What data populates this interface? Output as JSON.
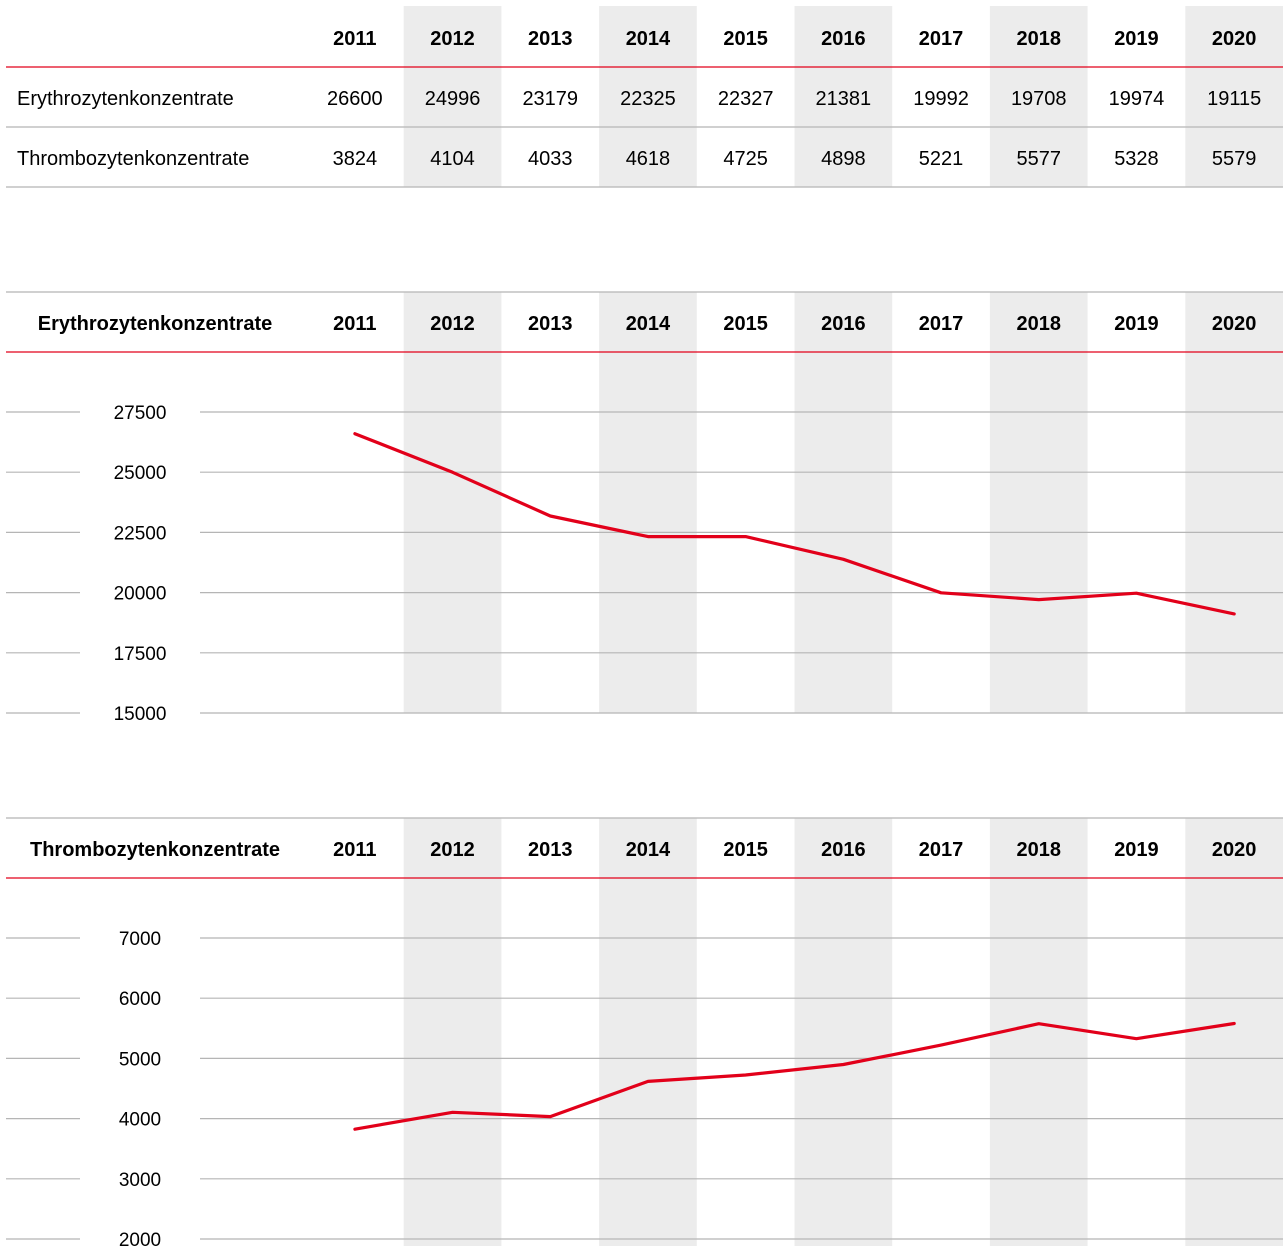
{
  "colors": {
    "accent": "#e2001a",
    "band": "#ececec",
    "rule": "#b5b5b5"
  },
  "chart_data": [
    {
      "type": "table",
      "years": [
        "2011",
        "2012",
        "2013",
        "2014",
        "2015",
        "2016",
        "2017",
        "2018",
        "2019",
        "2020"
      ],
      "rows": [
        {
          "label": "Erythrozytenkonzentrate",
          "cells": [
            "26600",
            "24996",
            "23179",
            "22325",
            "22327",
            "21381",
            "19992",
            "19708",
            "19974",
            "19115"
          ]
        },
        {
          "label": "Thrombozytenkonzentrate",
          "cells": [
            "3824",
            "4104",
            "4033",
            "4618",
            "4725",
            "4898",
            "5221",
            "5577",
            "5328",
            "5579"
          ]
        }
      ]
    },
    {
      "type": "line",
      "title": "Erythrozytenkonzentrate",
      "categories": [
        "2011",
        "2012",
        "2013",
        "2014",
        "2015",
        "2016",
        "2017",
        "2018",
        "2019",
        "2020"
      ],
      "values": [
        26600,
        24996,
        23179,
        22325,
        22327,
        21381,
        19992,
        19708,
        19974,
        19115
      ],
      "ylim": [
        15000,
        27500
      ],
      "yticks": [
        27500,
        25000,
        22500,
        20000,
        17500,
        15000
      ],
      "ytick_labels": [
        "27500",
        "25000",
        "22500",
        "20000",
        "17500",
        "15000"
      ],
      "grid": true
    },
    {
      "type": "line",
      "title": "Thrombozytenkonzentrate",
      "categories": [
        "2011",
        "2012",
        "2013",
        "2014",
        "2015",
        "2016",
        "2017",
        "2018",
        "2019",
        "2020"
      ],
      "values": [
        3824,
        4104,
        4033,
        4618,
        4725,
        4898,
        5221,
        5577,
        5328,
        5579
      ],
      "ylim": [
        2000,
        7000
      ],
      "yticks": [
        7000,
        6000,
        5000,
        4000,
        3000,
        2000
      ],
      "ytick_labels": [
        "7000",
        "6000",
        "5000",
        "4000",
        "3000",
        "2000"
      ],
      "grid": true
    }
  ]
}
